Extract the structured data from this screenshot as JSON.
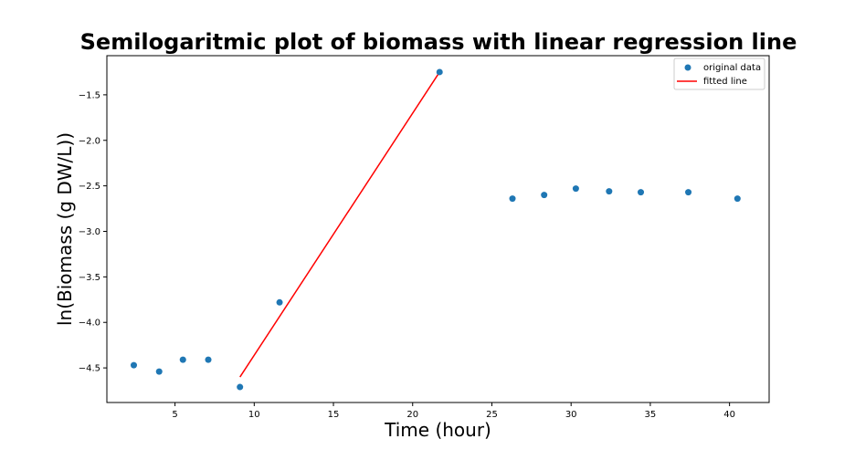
{
  "chart_data": {
    "type": "scatter",
    "title": "Semilogaritmic plot of biomass with linear regression line",
    "xlabel": "Time (hour)",
    "ylabel": "ln(Biomass (g DW/L))",
    "xlim": [
      0.7,
      42.5
    ],
    "ylim": [
      -4.88,
      -1.07
    ],
    "x_ticks": [
      5,
      10,
      15,
      20,
      25,
      30,
      35,
      40
    ],
    "x_tick_labels": [
      "5",
      "10",
      "15",
      "20",
      "25",
      "30",
      "35",
      "40"
    ],
    "y_ticks": [
      -1.5,
      -2.0,
      -2.5,
      -3.0,
      -3.5,
      -4.0,
      -4.5
    ],
    "y_tick_labels": [
      "−1.5",
      "−2.0",
      "−2.5",
      "−3.0",
      "−3.5",
      "−4.0",
      "−4.5"
    ],
    "grid": false,
    "legend_position": "top-right",
    "series": [
      {
        "name": "original data",
        "kind": "scatter",
        "color": "#1f77b4",
        "x": [
          2.4,
          4.0,
          5.5,
          7.1,
          9.1,
          11.6,
          21.7,
          26.3,
          28.3,
          30.3,
          32.4,
          34.4,
          37.4,
          40.5
        ],
        "y": [
          -4.47,
          -4.54,
          -4.41,
          -4.41,
          -4.71,
          -3.78,
          -1.25,
          -2.64,
          -2.6,
          -2.53,
          -2.56,
          -2.57,
          -2.57,
          -2.64
        ]
      },
      {
        "name": "fitted line",
        "kind": "line",
        "color": "#ff0000",
        "x": [
          9.1,
          21.7
        ],
        "y": [
          -4.6,
          -1.25
        ]
      }
    ]
  }
}
